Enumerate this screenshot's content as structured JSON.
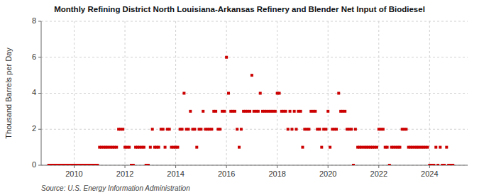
{
  "chart_data": {
    "type": "scatter",
    "title": "Monthly Refining District North Louisiana-Arkansas Refinery and Blender Net Input of Biodiesel",
    "y_label": "Thousand Barrels per Day",
    "annotations": [
      "Source: U.S. Energy Information Administration"
    ],
    "color": "#cc0000",
    "marker": "square",
    "grid": true,
    "xlim": [
      2008.7,
      2025.5
    ],
    "xticks": [
      2010,
      2012,
      2014,
      2016,
      2018,
      2020,
      2022,
      2024
    ],
    "ylim": [
      0,
      8
    ],
    "yticks": [
      0,
      2,
      4,
      6,
      8
    ],
    "x": [
      2009.0,
      2009.08,
      2009.17,
      2009.25,
      2009.33,
      2009.42,
      2009.5,
      2009.58,
      2009.67,
      2009.75,
      2009.83,
      2009.92,
      2010.0,
      2010.08,
      2010.17,
      2010.25,
      2010.33,
      2010.42,
      2010.5,
      2010.58,
      2010.67,
      2010.75,
      2010.83,
      2010.92,
      2011.0,
      2011.08,
      2011.17,
      2011.25,
      2011.33,
      2011.42,
      2011.5,
      2011.58,
      2011.67,
      2011.75,
      2011.83,
      2011.92,
      2012.0,
      2012.08,
      2012.17,
      2012.25,
      2012.33,
      2012.42,
      2012.5,
      2012.58,
      2012.67,
      2012.75,
      2012.83,
      2012.92,
      2013.0,
      2013.08,
      2013.17,
      2013.25,
      2013.33,
      2013.42,
      2013.5,
      2013.58,
      2013.67,
      2013.75,
      2013.83,
      2013.92,
      2014.0,
      2014.08,
      2014.17,
      2014.25,
      2014.33,
      2014.42,
      2014.5,
      2014.58,
      2014.67,
      2014.75,
      2014.83,
      2014.92,
      2015.0,
      2015.08,
      2015.17,
      2015.25,
      2015.33,
      2015.42,
      2015.5,
      2015.58,
      2015.67,
      2015.75,
      2015.83,
      2015.92,
      2016.0,
      2016.08,
      2016.17,
      2016.25,
      2016.33,
      2016.42,
      2016.5,
      2016.58,
      2016.67,
      2016.75,
      2016.83,
      2016.92,
      2017.0,
      2017.08,
      2017.17,
      2017.25,
      2017.33,
      2017.42,
      2017.5,
      2017.58,
      2017.67,
      2017.75,
      2017.83,
      2017.92,
      2018.0,
      2018.08,
      2018.17,
      2018.25,
      2018.33,
      2018.42,
      2018.5,
      2018.58,
      2018.67,
      2018.75,
      2018.83,
      2018.92,
      2019.0,
      2019.08,
      2019.17,
      2019.25,
      2019.33,
      2019.42,
      2019.5,
      2019.58,
      2019.67,
      2019.75,
      2019.83,
      2019.92,
      2020.0,
      2020.08,
      2020.17,
      2020.25,
      2020.33,
      2020.42,
      2020.5,
      2020.58,
      2020.67,
      2020.75,
      2020.83,
      2020.92,
      2021.0,
      2021.08,
      2021.17,
      2021.25,
      2021.33,
      2021.42,
      2021.5,
      2021.58,
      2021.67,
      2021.75,
      2021.83,
      2021.92,
      2022.0,
      2022.08,
      2022.17,
      2022.25,
      2022.33,
      2022.42,
      2022.5,
      2022.58,
      2022.67,
      2022.75,
      2022.83,
      2022.92,
      2023.0,
      2023.08,
      2023.17,
      2023.25,
      2023.33,
      2023.42,
      2023.5,
      2023.58,
      2023.67,
      2023.75,
      2023.83,
      2023.92,
      2024.0,
      2024.08,
      2024.17,
      2024.25,
      2024.33,
      2024.42,
      2024.5,
      2024.58,
      2024.67,
      2024.75,
      2024.83,
      2024.92
    ],
    "values": [
      0.0,
      0.0,
      0.0,
      0.0,
      0.0,
      0.0,
      0.0,
      0.0,
      0.0,
      0.0,
      0.0,
      0.0,
      0.0,
      0.0,
      0.0,
      0.0,
      0.0,
      0.0,
      0.0,
      0.0,
      0.0,
      0.0,
      0.0,
      0.0,
      1.0,
      1.0,
      1.0,
      1.0,
      1.0,
      1.0,
      1.0,
      1.0,
      1.0,
      2.0,
      2.0,
      2.0,
      1.0,
      1.0,
      1.0,
      0.0,
      0.0,
      1.0,
      1.0,
      1.0,
      1.0,
      1.0,
      0.0,
      0.0,
      1.0,
      2.0,
      1.0,
      1.0,
      1.0,
      2.0,
      2.0,
      1.0,
      2.0,
      2.0,
      1.0,
      1.0,
      1.0,
      1.0,
      2.0,
      2.0,
      4.0,
      2.0,
      2.0,
      3.0,
      2.0,
      2.0,
      1.0,
      2.0,
      2.0,
      3.0,
      2.0,
      2.0,
      2.0,
      2.0,
      3.0,
      3.0,
      2.0,
      2.0,
      3.0,
      3.0,
      6.0,
      4.0,
      3.0,
      3.0,
      3.0,
      2.0,
      1.0,
      2.0,
      3.0,
      3.0,
      3.0,
      3.0,
      5.0,
      3.0,
      3.0,
      3.0,
      4.0,
      3.0,
      3.0,
      3.0,
      3.0,
      3.0,
      3.0,
      3.0,
      4.0,
      4.0,
      3.0,
      3.0,
      3.0,
      2.0,
      3.0,
      2.0,
      3.0,
      2.0,
      3.0,
      3.0,
      1.0,
      2.0,
      2.0,
      2.0,
      3.0,
      3.0,
      3.0,
      2.0,
      2.0,
      1.0,
      2.0,
      2.0,
      3.0,
      1.0,
      2.0,
      2.0,
      2.0,
      4.0,
      3.0,
      3.0,
      3.0,
      2.0,
      2.0,
      2.0,
      0.0,
      2.0,
      1.0,
      1.0,
      1.0,
      1.0,
      1.0,
      1.0,
      1.0,
      1.0,
      1.0,
      1.0,
      2.0,
      2.0,
      2.0,
      1.0,
      1.0,
      0.0,
      1.0,
      1.0,
      1.0,
      1.0,
      1.0,
      2.0,
      2.0,
      2.0,
      1.0,
      1.0,
      1.0,
      1.0,
      1.0,
      1.0,
      1.0,
      1.0,
      1.0,
      1.0,
      0.0,
      0.0,
      0.0,
      1.0,
      0.0,
      1.0,
      0.0,
      0.0,
      1.0,
      0.0,
      0.0,
      0.0
    ]
  }
}
